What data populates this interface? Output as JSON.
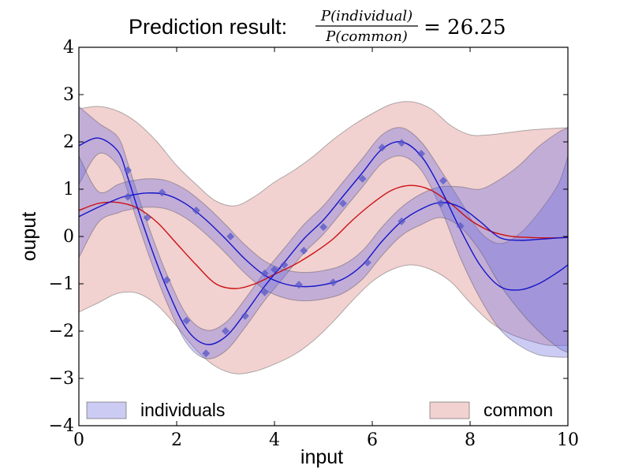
{
  "chart_data": {
    "type": "line",
    "title": {
      "prefix": "Prediction result: ",
      "numerator": "P(individual)",
      "denominator": "P(common)",
      "equals": "= 26.25"
    },
    "xlabel": "input",
    "ylabel": "ouput",
    "xlim": [
      0,
      10
    ],
    "ylim": [
      -4,
      4
    ],
    "xticks": [
      0,
      2,
      4,
      6,
      8,
      10
    ],
    "yticks": [
      -4,
      -3,
      -2,
      -1,
      0,
      1,
      2,
      3,
      4
    ],
    "grid": false,
    "legend": {
      "placement": "bottom",
      "entries": [
        {
          "label": "individuals",
          "color": "#7777ee",
          "placement": "bottom-left"
        },
        {
          "label": "common",
          "color": "#e8a0a0",
          "placement": "bottom-right"
        }
      ]
    },
    "colors": {
      "individuals_line": "#1515c8",
      "individuals_band": "#6a6ae0",
      "common_line": "#cc1111",
      "common_band": "#e39a9a",
      "markers": "#5555c8"
    },
    "series": [
      {
        "role": "individual-gp-1",
        "x": [
          0,
          0.4,
          0.8,
          1.0,
          1.2,
          1.5,
          1.8,
          2.2,
          2.6,
          3.0,
          3.4,
          3.8,
          4.2,
          4.6,
          5.0,
          5.4,
          5.8,
          6.2,
          6.6,
          7.0,
          7.4,
          7.8,
          8.2,
          8.6,
          9.0,
          9.4,
          9.8,
          10
        ],
        "mean": [
          1.92,
          2.08,
          1.8,
          1.25,
          0.6,
          -0.3,
          -1.1,
          -1.95,
          -2.28,
          -2.12,
          -1.62,
          -1.05,
          -0.55,
          -0.05,
          0.35,
          0.85,
          1.35,
          1.85,
          2.0,
          1.7,
          1.0,
          0.15,
          -0.6,
          -1.05,
          -1.13,
          -1.0,
          -0.75,
          -0.6
        ],
        "lower": [
          1.1,
          1.75,
          1.5,
          0.95,
          0.3,
          -0.6,
          -1.4,
          -2.25,
          -2.58,
          -2.42,
          -1.92,
          -1.35,
          -0.85,
          -0.35,
          0.05,
          0.55,
          1.05,
          1.55,
          1.7,
          1.4,
          0.6,
          -0.45,
          -1.3,
          -1.95,
          -2.3,
          -2.5,
          -2.55,
          -2.55
        ],
        "upper": [
          2.75,
          2.4,
          2.1,
          1.55,
          0.9,
          0.0,
          -0.8,
          -1.65,
          -1.98,
          -1.82,
          -1.32,
          -0.75,
          -0.25,
          0.25,
          0.65,
          1.15,
          1.65,
          2.15,
          2.3,
          2.0,
          1.4,
          0.75,
          0.1,
          -0.15,
          0.05,
          0.5,
          1.1,
          1.7
        ]
      },
      {
        "role": "individual-gp-2",
        "x": [
          0,
          0.4,
          0.8,
          1.0,
          1.4,
          1.8,
          2.2,
          2.6,
          3.0,
          3.4,
          3.8,
          4.2,
          4.6,
          5.0,
          5.4,
          5.8,
          6.2,
          6.6,
          7.0,
          7.4,
          7.8,
          8.2,
          8.6,
          9.0,
          9.4,
          9.8,
          10
        ],
        "mean": [
          0.42,
          0.62,
          0.8,
          0.86,
          0.92,
          0.88,
          0.68,
          0.35,
          -0.05,
          -0.48,
          -0.82,
          -1.0,
          -1.06,
          -1.02,
          -0.9,
          -0.6,
          -0.1,
          0.32,
          0.58,
          0.72,
          0.62,
          0.32,
          -0.02,
          -0.08,
          -0.06,
          -0.03,
          -0.02
        ],
        "lower": [
          -0.45,
          0.3,
          0.5,
          0.56,
          0.62,
          0.58,
          0.38,
          0.05,
          -0.35,
          -0.78,
          -1.12,
          -1.3,
          -1.36,
          -1.32,
          -1.2,
          -0.9,
          -0.4,
          0.02,
          0.25,
          0.4,
          0.2,
          -0.3,
          -1.0,
          -1.55,
          -2.0,
          -2.35,
          -2.45
        ],
        "upper": [
          1.7,
          0.95,
          1.1,
          1.16,
          1.22,
          1.18,
          0.98,
          0.65,
          0.25,
          -0.18,
          -0.52,
          -0.7,
          -0.76,
          -0.72,
          -0.6,
          -0.3,
          0.2,
          0.62,
          0.9,
          1.05,
          1.05,
          1.0,
          1.2,
          1.5,
          1.9,
          2.2,
          2.3
        ]
      },
      {
        "role": "common-gp",
        "x": [
          0,
          0.4,
          0.8,
          1.2,
          1.6,
          2.0,
          2.4,
          2.8,
          3.2,
          3.6,
          4.0,
          4.4,
          4.8,
          5.2,
          5.6,
          6.0,
          6.4,
          6.8,
          7.2,
          7.6,
          8.0,
          8.4,
          8.8,
          9.2,
          9.6,
          10
        ],
        "mean": [
          0.55,
          0.7,
          0.72,
          0.6,
          0.3,
          -0.15,
          -0.6,
          -1.0,
          -1.1,
          -1.0,
          -0.8,
          -0.6,
          -0.35,
          -0.05,
          0.35,
          0.7,
          0.98,
          1.08,
          0.98,
          0.7,
          0.35,
          0.12,
          0.01,
          -0.02,
          -0.03,
          -0.02
        ],
        "lower": [
          -1.6,
          -1.4,
          -1.2,
          -1.2,
          -1.45,
          -1.9,
          -2.4,
          -2.75,
          -2.9,
          -2.85,
          -2.7,
          -2.5,
          -2.2,
          -1.8,
          -1.35,
          -0.95,
          -0.7,
          -0.6,
          -0.7,
          -0.95,
          -1.4,
          -1.8,
          -2.05,
          -2.2,
          -2.3,
          -2.3
        ],
        "upper": [
          2.7,
          2.75,
          2.65,
          2.4,
          2.0,
          1.5,
          1.1,
          0.75,
          0.65,
          0.85,
          1.15,
          1.4,
          1.7,
          2.05,
          2.35,
          2.6,
          2.8,
          2.85,
          2.7,
          2.35,
          2.15,
          2.15,
          2.2,
          2.25,
          2.28,
          2.3
        ]
      }
    ],
    "observations": [
      {
        "x": 1.0,
        "y": 1.4
      },
      {
        "x": 1.0,
        "y": 0.84
      },
      {
        "x": 1.4,
        "y": 0.4
      },
      {
        "x": 1.7,
        "y": 0.93
      },
      {
        "x": 1.8,
        "y": -0.92
      },
      {
        "x": 2.2,
        "y": -1.78
      },
      {
        "x": 2.4,
        "y": 0.55
      },
      {
        "x": 2.6,
        "y": -2.47
      },
      {
        "x": 3.0,
        "y": -2.0
      },
      {
        "x": 3.1,
        "y": 0.0
      },
      {
        "x": 3.4,
        "y": -1.68
      },
      {
        "x": 3.8,
        "y": -1.18
      },
      {
        "x": 3.8,
        "y": -0.78
      },
      {
        "x": 4.0,
        "y": -0.7
      },
      {
        "x": 4.2,
        "y": -0.6
      },
      {
        "x": 4.5,
        "y": -1.02
      },
      {
        "x": 4.6,
        "y": -0.3
      },
      {
        "x": 5.0,
        "y": 0.2
      },
      {
        "x": 5.2,
        "y": -0.97
      },
      {
        "x": 5.4,
        "y": 0.7
      },
      {
        "x": 5.8,
        "y": 1.22
      },
      {
        "x": 5.9,
        "y": -0.55
      },
      {
        "x": 6.2,
        "y": 1.88
      },
      {
        "x": 6.6,
        "y": 1.98
      },
      {
        "x": 6.6,
        "y": 0.32
      },
      {
        "x": 7.0,
        "y": 1.75
      },
      {
        "x": 7.4,
        "y": 0.7
      },
      {
        "x": 7.45,
        "y": 1.18
      },
      {
        "x": 7.8,
        "y": 0.22
      }
    ]
  }
}
